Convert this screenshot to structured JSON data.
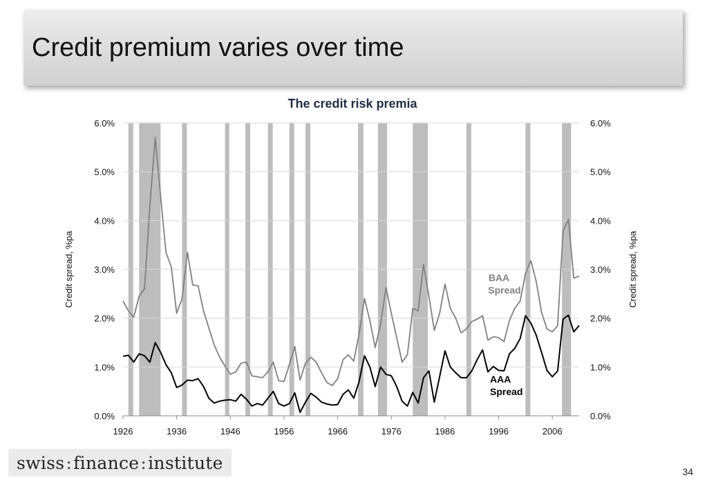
{
  "slide": {
    "title": "Credit premium varies over time",
    "page_number": "34"
  },
  "logo": {
    "part1": "swiss",
    "part2": "finance",
    "part3": "institute",
    "separator": ":"
  },
  "chart_data": {
    "type": "line",
    "title": "The credit risk premia",
    "ylabel_left": "Credit spread, %pa",
    "ylabel_right": "Credit spread, %pa",
    "xlim": [
      1926,
      2011
    ],
    "ylim": [
      0,
      6
    ],
    "x_ticks": [
      "1926",
      "1936",
      "1946",
      "1956",
      "1966",
      "1976",
      "1986",
      "1996",
      "2006"
    ],
    "y_ticks": [
      "0.0%",
      "1.0%",
      "2.0%",
      "3.0%",
      "4.0%",
      "5.0%",
      "6.0%"
    ],
    "grid": true,
    "recession_color": "#bdbdbd",
    "recession_bands": [
      [
        1927.0,
        1927.9
      ],
      [
        1929.0,
        1933.0
      ],
      [
        1937.0,
        1937.9
      ],
      [
        1945.0,
        1945.8
      ],
      [
        1948.8,
        1949.7
      ],
      [
        1953.0,
        1953.9
      ],
      [
        1957.0,
        1957.9
      ],
      [
        1960.0,
        1960.9
      ],
      [
        1969.8,
        1970.8
      ],
      [
        1973.5,
        1975.2
      ],
      [
        1980.0,
        1982.8
      ],
      [
        1990.0,
        1990.9
      ],
      [
        2001.0,
        2001.9
      ],
      [
        2007.8,
        2009.5
      ]
    ],
    "series": [
      {
        "name": "BAA Spread",
        "label_lines": [
          "BAA",
          "Spread"
        ],
        "color": "#808080",
        "x": [
          1926,
          1927,
          1928,
          1929,
          1930,
          1931,
          1932,
          1933,
          1934,
          1935,
          1936,
          1937,
          1938,
          1939,
          1940,
          1941,
          1942,
          1943,
          1944,
          1945,
          1946,
          1947,
          1948,
          1949,
          1950,
          1951,
          1952,
          1953,
          1954,
          1955,
          1956,
          1957,
          1958,
          1959,
          1960,
          1961,
          1962,
          1963,
          1964,
          1965,
          1966,
          1967,
          1968,
          1969,
          1970,
          1971,
          1972,
          1973,
          1974,
          1975,
          1976,
          1977,
          1978,
          1979,
          1980,
          1981,
          1982,
          1983,
          1984,
          1985,
          1986,
          1987,
          1988,
          1989,
          1990,
          1991,
          1992,
          1993,
          1994,
          1995,
          1996,
          1997,
          1998,
          1999,
          2000,
          2001,
          2002,
          2003,
          2004,
          2005,
          2006,
          2007,
          2008,
          2009,
          2010,
          2011
        ],
        "y": [
          2.35,
          2.15,
          2.02,
          2.45,
          2.6,
          4.3,
          5.7,
          4.5,
          3.35,
          3.05,
          2.1,
          2.4,
          3.35,
          2.68,
          2.66,
          2.15,
          1.8,
          1.45,
          1.2,
          1.02,
          0.85,
          0.9,
          1.08,
          1.1,
          0.82,
          0.8,
          0.78,
          0.9,
          1.1,
          0.72,
          0.7,
          1.05,
          1.42,
          0.73,
          1.08,
          1.2,
          1.1,
          0.88,
          0.68,
          0.62,
          0.76,
          1.15,
          1.25,
          1.12,
          1.68,
          2.4,
          1.95,
          1.4,
          1.88,
          2.63,
          2.1,
          1.6,
          1.1,
          1.25,
          2.2,
          2.15,
          3.1,
          2.45,
          1.75,
          2.1,
          2.7,
          2.2,
          2.0,
          1.7,
          1.78,
          1.93,
          1.98,
          2.05,
          1.55,
          1.62,
          1.6,
          1.52,
          1.95,
          2.2,
          2.35,
          2.92,
          3.18,
          2.75,
          2.12,
          1.78,
          1.72,
          1.85,
          3.78,
          4.03,
          2.82,
          2.86
        ]
      },
      {
        "name": "AAA Spread",
        "label_lines": [
          "AAA",
          "Spread"
        ],
        "color": "#000000",
        "x": [
          1926,
          1927,
          1928,
          1929,
          1930,
          1931,
          1932,
          1933,
          1934,
          1935,
          1936,
          1937,
          1938,
          1939,
          1940,
          1941,
          1942,
          1943,
          1944,
          1945,
          1946,
          1947,
          1948,
          1949,
          1950,
          1951,
          1952,
          1953,
          1954,
          1955,
          1956,
          1957,
          1958,
          1959,
          1960,
          1961,
          1962,
          1963,
          1964,
          1965,
          1966,
          1967,
          1968,
          1969,
          1970,
          1971,
          1972,
          1973,
          1974,
          1975,
          1976,
          1977,
          1978,
          1979,
          1980,
          1981,
          1982,
          1983,
          1984,
          1985,
          1986,
          1987,
          1988,
          1989,
          1990,
          1991,
          1992,
          1993,
          1994,
          1995,
          1996,
          1997,
          1998,
          1999,
          2000,
          2001,
          2002,
          2003,
          2004,
          2005,
          2006,
          2007,
          2008,
          2009,
          2010,
          2011
        ],
        "y": [
          1.22,
          1.24,
          1.1,
          1.27,
          1.23,
          1.1,
          1.5,
          1.3,
          1.05,
          0.88,
          0.58,
          0.63,
          0.73,
          0.72,
          0.76,
          0.6,
          0.36,
          0.26,
          0.3,
          0.32,
          0.33,
          0.3,
          0.44,
          0.34,
          0.2,
          0.25,
          0.22,
          0.36,
          0.5,
          0.25,
          0.2,
          0.25,
          0.47,
          0.07,
          0.28,
          0.46,
          0.38,
          0.28,
          0.24,
          0.22,
          0.23,
          0.44,
          0.53,
          0.36,
          0.7,
          1.23,
          1.0,
          0.6,
          1.0,
          0.85,
          0.82,
          0.6,
          0.3,
          0.2,
          0.48,
          0.26,
          0.78,
          0.92,
          0.28,
          0.8,
          1.33,
          1.0,
          0.88,
          0.78,
          0.78,
          0.92,
          1.15,
          1.35,
          0.9,
          1.01,
          0.93,
          0.92,
          1.27,
          1.38,
          1.58,
          2.05,
          1.9,
          1.65,
          1.3,
          0.93,
          0.8,
          0.92,
          1.98,
          2.06,
          1.72,
          1.85
        ]
      }
    ]
  }
}
